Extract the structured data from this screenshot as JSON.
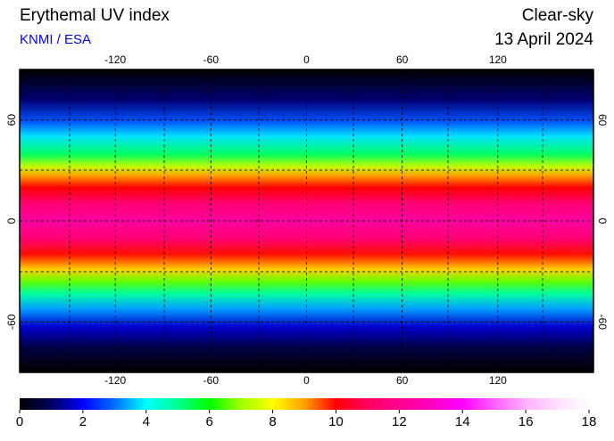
{
  "title": "Erythemal UV index",
  "subtitle": "KNMI / ESA",
  "sky": "Clear-sky",
  "date": "13 April 2024",
  "map": {
    "lonlim": [
      -180,
      180
    ],
    "latlim": [
      -90,
      90
    ],
    "lon_ticks": [
      -120,
      -60,
      0,
      60,
      120
    ],
    "lat_ticks": [
      60,
      0,
      -60
    ]
  },
  "colorbar": {
    "lim": [
      0,
      18
    ],
    "ticks": [
      0,
      2,
      4,
      6,
      8,
      10,
      12,
      14,
      16,
      18
    ],
    "colors": [
      "#000000",
      "#000060",
      "#0000ff",
      "#0070ff",
      "#00ffff",
      "#00ff90",
      "#00ff00",
      "#a0ff00",
      "#ffff00",
      "#ffa000",
      "#ff0000",
      "#ff0060",
      "#ff0090",
      "#ff00c0",
      "#ff00ff",
      "#ff60ff",
      "#ffb0ff",
      "#ffe0ff",
      "#ffffff"
    ]
  }
}
